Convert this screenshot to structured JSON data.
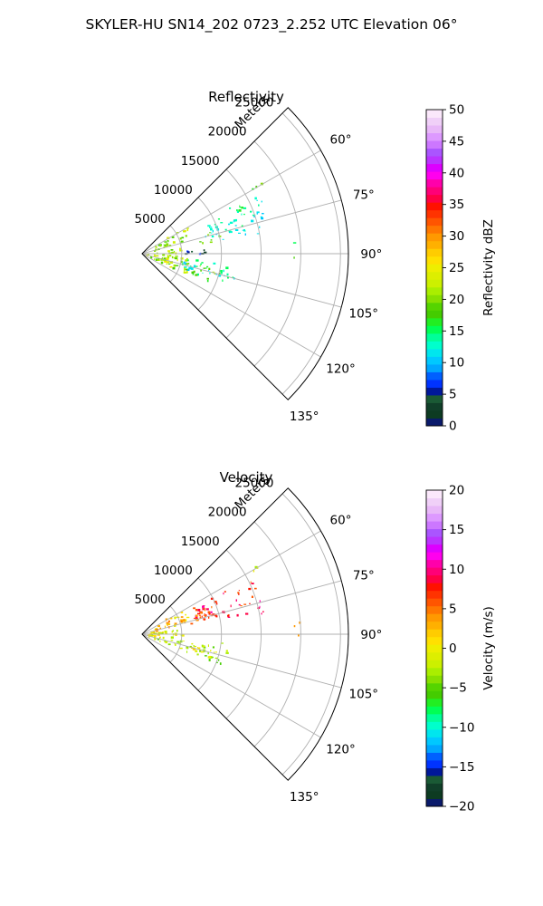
{
  "figure": {
    "suptitle": "SKYLER-HU  SN14_202  0723_2.252 UTC Elevation 06°"
  },
  "chart_data": [
    {
      "type": "polar-sector",
      "title": "Reflectivity",
      "radial_label": "Meters",
      "range_ticks": [
        5000,
        10000,
        15000,
        20000,
        25000
      ],
      "range_tick_labels": [
        "5000",
        "10000",
        "15000",
        "20000",
        "25000"
      ],
      "range_max": 26000,
      "azimuth_range": [
        45,
        135
      ],
      "azimuth_ticks": [
        60,
        75,
        90,
        105,
        120,
        135
      ],
      "azimuth_tick_labels": [
        "60°",
        "75°",
        "90°",
        "105°",
        "120°",
        "135°"
      ],
      "grid": true,
      "colorbar": {
        "label": "Reflectivity dBZ",
        "min": 0,
        "max": 50,
        "ticks": [
          0,
          5,
          10,
          15,
          20,
          25,
          30,
          35,
          40,
          45,
          50
        ],
        "tick_labels": [
          "0",
          "5",
          "10",
          "15",
          "20",
          "25",
          "30",
          "35",
          "40",
          "45",
          "50"
        ],
        "colors": [
          "#0a1a6b",
          "#0d3b22",
          "#103f29",
          "#1a5a35",
          "#00189a",
          "#0033ff",
          "#0060ff",
          "#00a6ff",
          "#00c8ff",
          "#00e6ee",
          "#00ffcc",
          "#00ff99",
          "#00ff55",
          "#22ee22",
          "#44cc00",
          "#55d400",
          "#88e000",
          "#aaee00",
          "#ccf000",
          "#ddee00",
          "#eeee00",
          "#ffe000",
          "#ffcc00",
          "#ffb000",
          "#ff9900",
          "#ff7700",
          "#ff5500",
          "#ff3300",
          "#ff1100",
          "#ff0044",
          "#ff0077",
          "#ff00aa",
          "#ff00ee",
          "#dd00ff",
          "#bb33ff",
          "#aa55ff",
          "#cc77ff",
          "#dd99ff",
          "#e8b8f8",
          "#f0d0f8",
          "#fbe8fb"
        ]
      },
      "echo_regions": [
        {
          "az": [
            65,
            80
          ],
          "range": [
            8000,
            16000
          ],
          "value": 12
        },
        {
          "az": [
            62,
            74
          ],
          "range": [
            12000,
            16500
          ],
          "value": 14
        },
        {
          "az": [
            70,
            80
          ],
          "range": [
            7000,
            10000
          ],
          "value": 18
        },
        {
          "az": [
            85,
            92
          ],
          "range": [
            5000,
            8500
          ],
          "value": 5
        },
        {
          "az": [
            96,
            110
          ],
          "range": [
            5000,
            12000
          ],
          "value": 13
        },
        {
          "az": [
            100,
            112
          ],
          "range": [
            6000,
            10000
          ],
          "value": 19
        },
        {
          "az": [
            55,
            75
          ],
          "range": [
            1500,
            6500
          ],
          "value": 21
        },
        {
          "az": [
            80,
            100
          ],
          "range": [
            500,
            5000
          ],
          "value": 22
        },
        {
          "az": [
            95,
            115
          ],
          "range": [
            1000,
            6000
          ],
          "value": 20
        },
        {
          "az": [
            100,
            115
          ],
          "range": [
            1500,
            4000
          ],
          "value": 24
        },
        {
          "az": [
            58,
            62
          ],
          "range": [
            16000,
            17500
          ],
          "value": 20
        },
        {
          "az": [
            85,
            92
          ],
          "range": [
            19000,
            20000
          ],
          "value": 17
        }
      ]
    },
    {
      "type": "polar-sector",
      "title": "Velocity",
      "radial_label": "Meters",
      "range_ticks": [
        5000,
        10000,
        15000,
        20000,
        25000
      ],
      "range_tick_labels": [
        "5000",
        "10000",
        "15000",
        "20000",
        "25000"
      ],
      "range_max": 26000,
      "azimuth_range": [
        45,
        135
      ],
      "azimuth_ticks": [
        60,
        75,
        90,
        105,
        120,
        135
      ],
      "azimuth_tick_labels": [
        "60°",
        "75°",
        "90°",
        "105°",
        "120°",
        "135°"
      ],
      "grid": true,
      "colorbar": {
        "label": "Velocity (m/s)",
        "min": -20,
        "max": 20,
        "ticks": [
          -20,
          -15,
          -10,
          -5,
          0,
          5,
          10,
          15,
          20
        ],
        "tick_labels": [
          "−20",
          "−15",
          "−10",
          "−5",
          "0",
          "5",
          "10",
          "15",
          "20"
        ],
        "colors": [
          "#0a1a6b",
          "#0d3b22",
          "#103f29",
          "#1a5a35",
          "#00189a",
          "#0033ff",
          "#0060ff",
          "#00a6ff",
          "#00c8ff",
          "#00e6ee",
          "#00ffcc",
          "#00ff99",
          "#00ff55",
          "#22ee22",
          "#44cc00",
          "#55d400",
          "#88e000",
          "#aaee00",
          "#ccf000",
          "#ddee00",
          "#eeee00",
          "#ffe000",
          "#ffcc00",
          "#ffb000",
          "#ff9900",
          "#ff7700",
          "#ff5500",
          "#ff3300",
          "#ff1100",
          "#ff0044",
          "#ff0077",
          "#ff00aa",
          "#ff00ee",
          "#dd00ff",
          "#bb33ff",
          "#aa55ff",
          "#cc77ff",
          "#dd99ff",
          "#e8b8f8",
          "#f0d0f8",
          "#fbe8fb"
        ]
      },
      "echo_regions": [
        {
          "az": [
            62,
            80
          ],
          "range": [
            7000,
            16000
          ],
          "value": 8
        },
        {
          "az": [
            65,
            78
          ],
          "range": [
            5000,
            10000
          ],
          "value": 6
        },
        {
          "az": [
            55,
            75
          ],
          "range": [
            1000,
            6000
          ],
          "value": 2
        },
        {
          "az": [
            80,
            100
          ],
          "range": [
            500,
            5000
          ],
          "value": -1
        },
        {
          "az": [
            96,
            112
          ],
          "range": [
            1500,
            11000
          ],
          "value": -3
        },
        {
          "az": [
            100,
            112
          ],
          "range": [
            5000,
            10000
          ],
          "value": -1
        },
        {
          "az": [
            58,
            62
          ],
          "range": [
            16000,
            17500
          ],
          "value": 0
        },
        {
          "az": [
            85,
            92
          ],
          "range": [
            19000,
            20000
          ],
          "value": 4
        }
      ]
    }
  ]
}
